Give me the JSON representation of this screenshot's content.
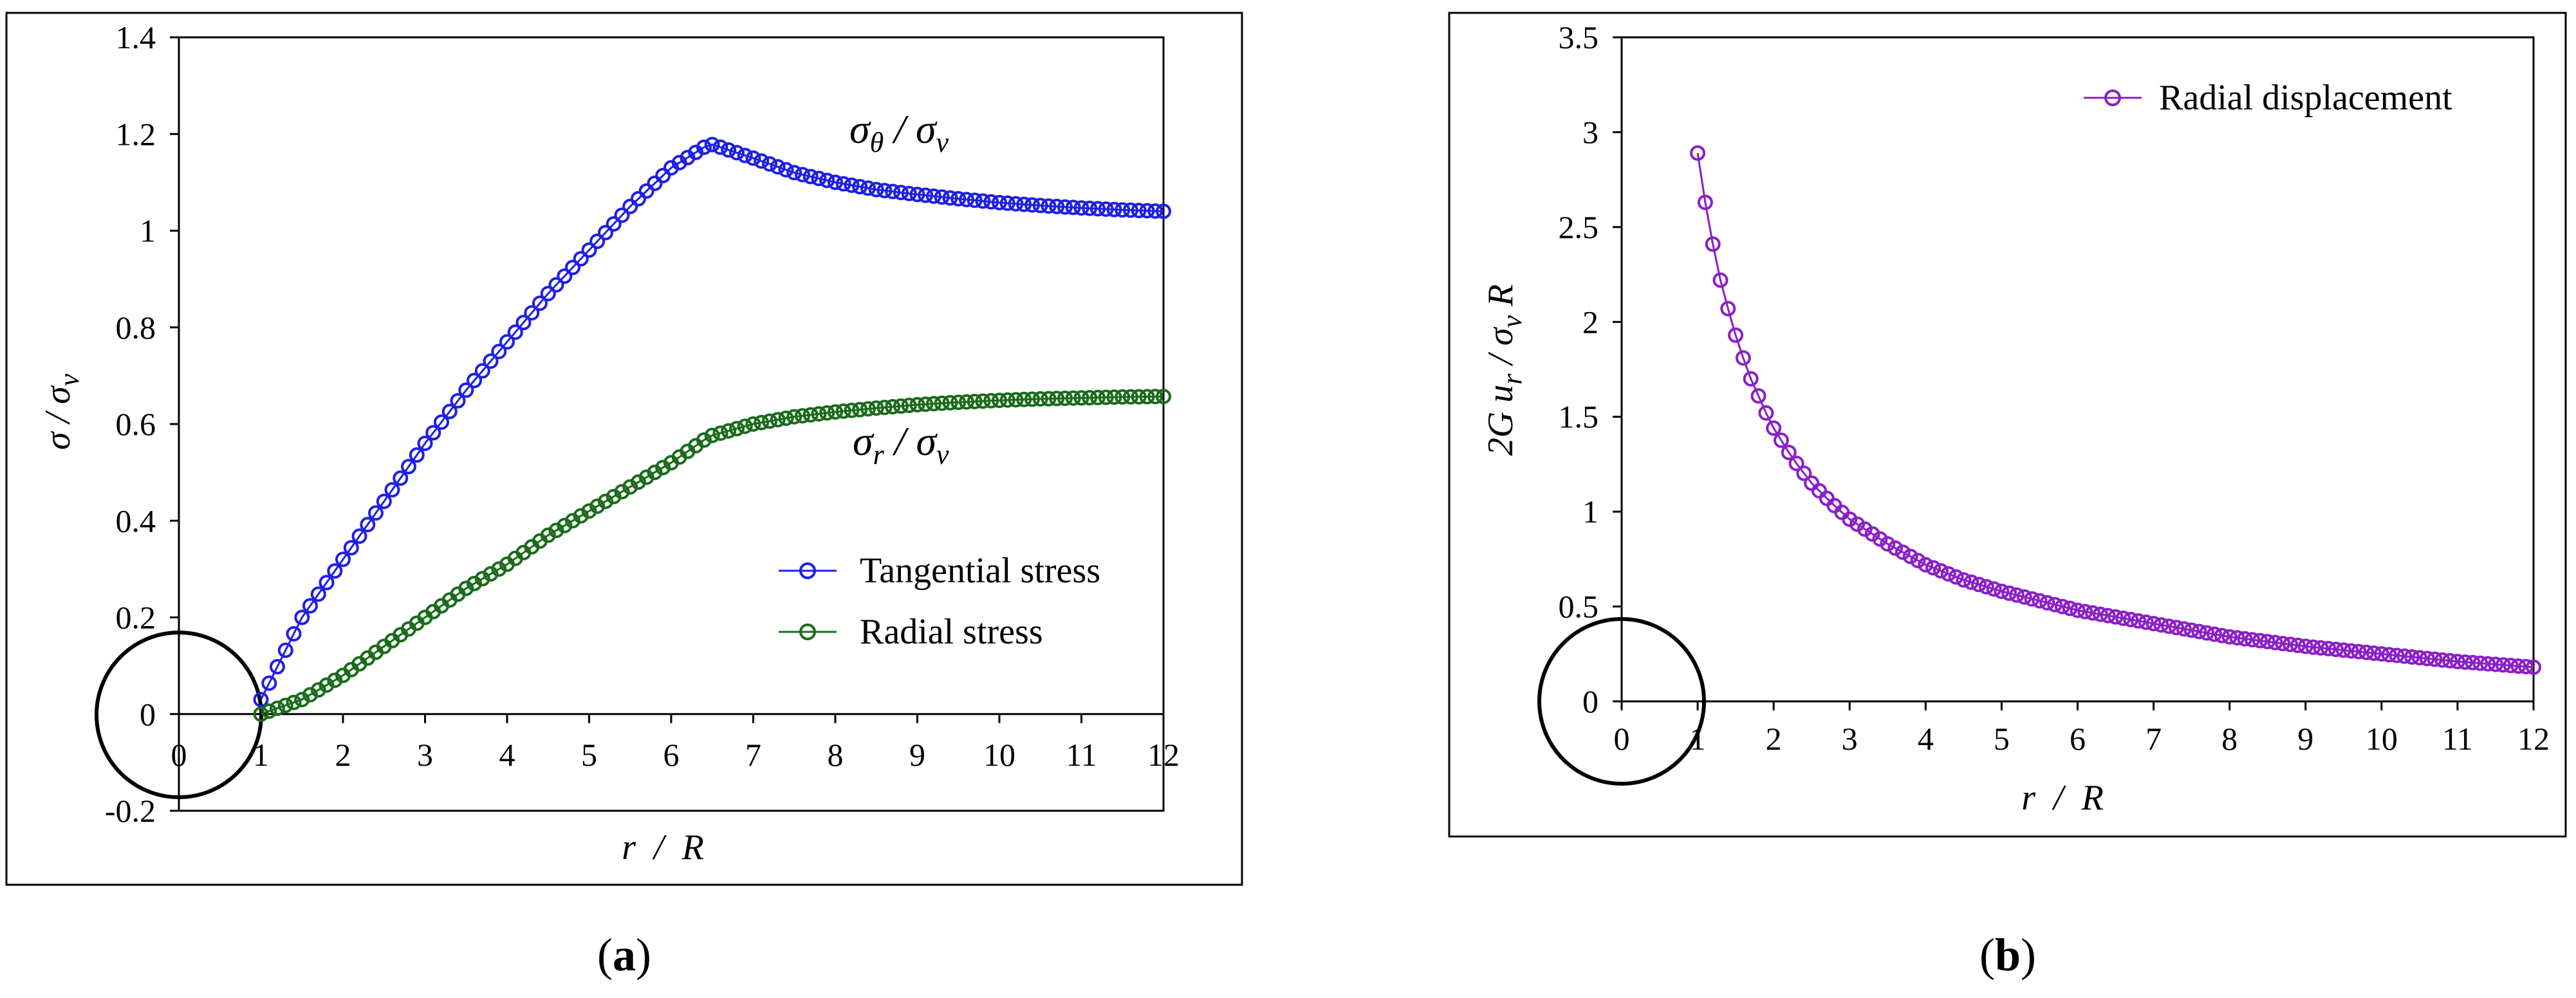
{
  "chart_data": [
    {
      "id": "a",
      "type": "line",
      "caption": {
        "open": "(",
        "letter": "a",
        "close": ")"
      },
      "xlabel": "r  /  R",
      "ylabel": "σ / σv",
      "xlim": [
        0,
        12
      ],
      "ylim": [
        -0.2,
        1.4
      ],
      "xticks": [
        0,
        1,
        2,
        3,
        4,
        5,
        6,
        7,
        8,
        9,
        10,
        11,
        12
      ],
      "yticks": [
        -0.2,
        0,
        0.2,
        0.4,
        0.6,
        0.8,
        1,
        1.2,
        1.4
      ],
      "ytick_labels": [
        "-0.2",
        "0",
        "0.2",
        "0.4",
        "0.6",
        "0.8",
        "1",
        "1.2",
        "1.4"
      ],
      "plastic_radius": 6.47,
      "series": [
        {
          "name": "Tangential stress",
          "color": "#1f1fe6",
          "label": "σθ / σv",
          "x": [
            1,
            1.5,
            2,
            2.5,
            3,
            3.5,
            4,
            4.5,
            5,
            5.5,
            6,
            6.47,
            7,
            7.5,
            8,
            8.5,
            9,
            9.5,
            10,
            10.5,
            11,
            11.5,
            12
          ],
          "y": [
            0.03,
            0.2,
            0.32,
            0.44,
            0.56,
            0.67,
            0.77,
            0.87,
            0.96,
            1.05,
            1.13,
            1.18,
            1.15,
            1.12,
            1.1,
            1.085,
            1.075,
            1.066,
            1.058,
            1.052,
            1.047,
            1.043,
            1.04
          ]
        },
        {
          "name": "Radial stress",
          "color": "#1a6b1a",
          "label": "σr / σv",
          "x": [
            1,
            1.5,
            2,
            2.5,
            3,
            3.5,
            4,
            4.5,
            5,
            5.5,
            6,
            6.47,
            7,
            7.5,
            8,
            8.5,
            9,
            9.5,
            10,
            10.5,
            11,
            11.5,
            12
          ],
          "y": [
            0.0,
            0.03,
            0.08,
            0.14,
            0.2,
            0.26,
            0.31,
            0.37,
            0.42,
            0.47,
            0.52,
            0.575,
            0.6,
            0.615,
            0.625,
            0.633,
            0.64,
            0.645,
            0.649,
            0.652,
            0.654,
            0.656,
            0.657
          ]
        }
      ],
      "legend": {
        "position": "right-middle",
        "entries": [
          "Tangential stress",
          "Radial stress"
        ]
      }
    },
    {
      "id": "b",
      "type": "line",
      "caption": {
        "open": "(",
        "letter": "b",
        "close": ")"
      },
      "xlabel": "r  /  R",
      "ylabel": "2G ur / σv R",
      "xlim": [
        0,
        12
      ],
      "ylim": [
        0,
        3.5
      ],
      "xticks": [
        0,
        1,
        2,
        3,
        4,
        5,
        6,
        7,
        8,
        9,
        10,
        11,
        12
      ],
      "yticks": [
        0,
        0.5,
        1,
        1.5,
        2,
        2.5,
        3,
        3.5
      ],
      "ytick_labels": [
        "0",
        "0.5",
        "1",
        "1.5",
        "2",
        "2.5",
        "3",
        "3.5"
      ],
      "series": [
        {
          "name": "Radial displacement",
          "color": "#8a1fc8",
          "x": [
            1,
            1.1,
            1.2,
            1.3,
            1.4,
            1.5,
            1.6,
            1.7,
            1.8,
            1.9,
            2,
            2.25,
            2.5,
            2.75,
            3,
            3.5,
            4,
            4.5,
            5,
            6,
            7,
            8,
            9,
            10,
            11,
            12
          ],
          "y": [
            2.89,
            2.63,
            2.41,
            2.22,
            2.07,
            1.93,
            1.81,
            1.7,
            1.61,
            1.52,
            1.44,
            1.28,
            1.15,
            1.05,
            0.96,
            0.83,
            0.72,
            0.64,
            0.58,
            0.48,
            0.41,
            0.34,
            0.29,
            0.25,
            0.21,
            0.18
          ]
        }
      ],
      "legend": {
        "position": "top-right",
        "entries": [
          "Radial displacement"
        ]
      }
    }
  ]
}
